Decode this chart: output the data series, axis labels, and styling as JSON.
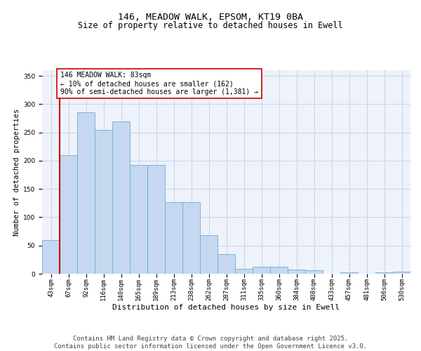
{
  "title_line1": "146, MEADOW WALK, EPSOM, KT19 0BA",
  "title_line2": "Size of property relative to detached houses in Ewell",
  "xlabel": "Distribution of detached houses by size in Ewell",
  "ylabel": "Number of detached properties",
  "categories": [
    "43sqm",
    "67sqm",
    "92sqm",
    "116sqm",
    "140sqm",
    "165sqm",
    "189sqm",
    "213sqm",
    "238sqm",
    "262sqm",
    "287sqm",
    "311sqm",
    "335sqm",
    "360sqm",
    "384sqm",
    "408sqm",
    "433sqm",
    "457sqm",
    "481sqm",
    "506sqm",
    "530sqm"
  ],
  "values": [
    60,
    210,
    285,
    255,
    270,
    193,
    193,
    127,
    127,
    68,
    35,
    9,
    12,
    12,
    7,
    6,
    0,
    3,
    0,
    2,
    4
  ],
  "bar_color": "#c5d8f0",
  "bar_edge_color": "#6baed6",
  "vline_color": "#cc0000",
  "annotation_text": "146 MEADOW WALK: 83sqm\n← 10% of detached houses are smaller (162)\n90% of semi-detached houses are larger (1,381) →",
  "annotation_box_color": "#ffffff",
  "annotation_box_edge": "#cc0000",
  "ylim": [
    0,
    360
  ],
  "yticks": [
    0,
    50,
    100,
    150,
    200,
    250,
    300,
    350
  ],
  "grid_color": "#c8d4e8",
  "bg_color": "#eef2fa",
  "footer_text": "Contains HM Land Registry data © Crown copyright and database right 2025.\nContains public sector information licensed under the Open Government Licence v3.0.",
  "title_fontsize": 9.5,
  "subtitle_fontsize": 8.5,
  "xlabel_fontsize": 8,
  "ylabel_fontsize": 7.5,
  "tick_fontsize": 6.5,
  "annotation_fontsize": 7,
  "footer_fontsize": 6.5
}
